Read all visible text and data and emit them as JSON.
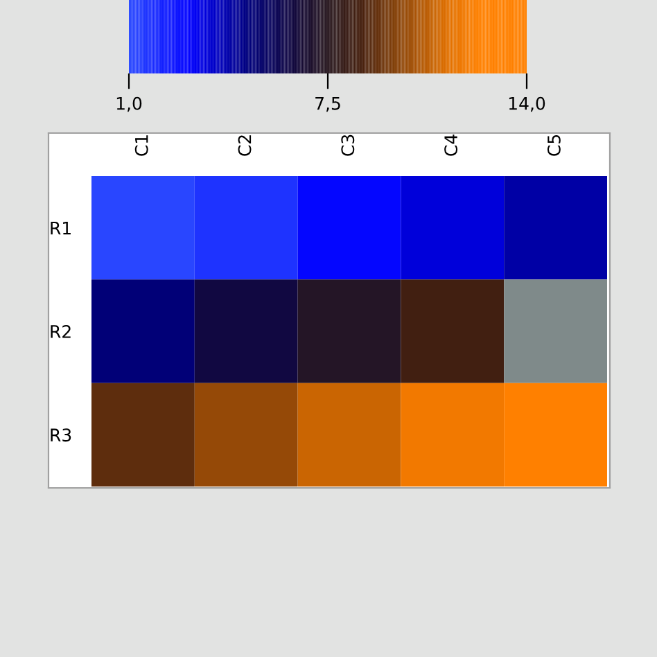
{
  "chart_data": {
    "type": "heatmap",
    "categories": [
      "C1",
      "C2",
      "C3",
      "C4",
      "C5"
    ],
    "y_categories": [
      "R1",
      "R2",
      "R3"
    ],
    "cells": [
      [
        1.1,
        1.6,
        2.8,
        3.5,
        4.3
      ],
      [
        5.0,
        6.3,
        7.2,
        8.4,
        null
      ],
      [
        9.0,
        10.0,
        11.0,
        12.0,
        14.0
      ]
    ],
    "clim": [
      1.0,
      14.0
    ],
    "cticks": [
      {
        "value": 1.0,
        "label": "1,0"
      },
      {
        "value": 7.5,
        "label": "7,5"
      },
      {
        "value": 14.0,
        "label": "14,0"
      }
    ]
  }
}
